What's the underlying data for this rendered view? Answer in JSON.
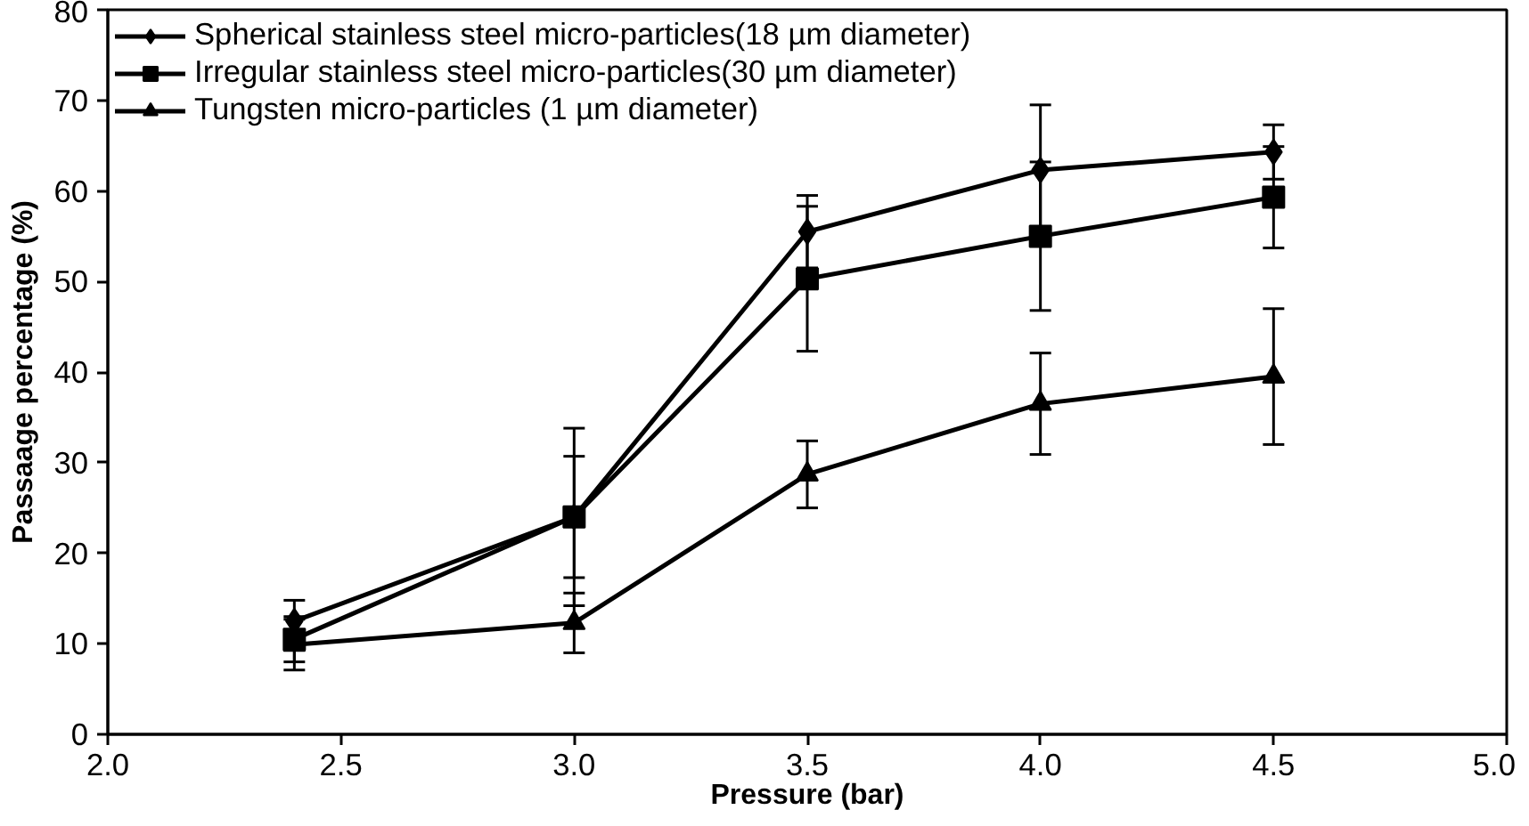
{
  "chart_data": {
    "type": "line",
    "xlabel": "Pressure (bar)",
    "ylabel": "Passaage percentage (%)",
    "x": [
      2.4,
      3.0,
      3.5,
      4.0,
      4.5
    ],
    "xlim": [
      2.0,
      5.0
    ],
    "xticks": [
      {
        "value": 2.0,
        "label": "2.0"
      },
      {
        "value": 2.5,
        "label": "2.5"
      },
      {
        "value": 3.0,
        "label": "3.0"
      },
      {
        "value": 3.5,
        "label": "3.5"
      },
      {
        "value": 4.0,
        "label": "4.0"
      },
      {
        "value": 4.5,
        "label": "4.5"
      },
      {
        "value": 5.0,
        "label": "5.0"
      }
    ],
    "ylim": [
      0,
      80
    ],
    "yticks": [
      0,
      10,
      20,
      30,
      40,
      50,
      60,
      70,
      80
    ],
    "grid": false,
    "legend": "top left",
    "line_style": "solid",
    "series": [
      {
        "name": "Spherical stainless steel micro-particles(18 µm diameter)",
        "color": "#000000",
        "marker": "diamond",
        "values": [
          12.5,
          24,
          55.5,
          62.3,
          64.3
        ],
        "errors": [
          2.3,
          9.8,
          4,
          7.2,
          3
        ]
      },
      {
        "name": "Irregular stainless steel micro-particles(30 µm diameter)",
        "color": "#000000",
        "marker": "square",
        "values": [
          10.5,
          24,
          50.3,
          55,
          59.3
        ],
        "errors": [
          2.5,
          6.7,
          8,
          8.2,
          5.6
        ]
      },
      {
        "name": "Tungsten micro-particles (1 µm diameter)",
        "color": "#000000",
        "marker": "triangle",
        "values": [
          9.9,
          12.3,
          28.7,
          36.5,
          39.5
        ],
        "errors": [
          2.8,
          3.3,
          3.7,
          5.6,
          7.5
        ]
      }
    ]
  }
}
